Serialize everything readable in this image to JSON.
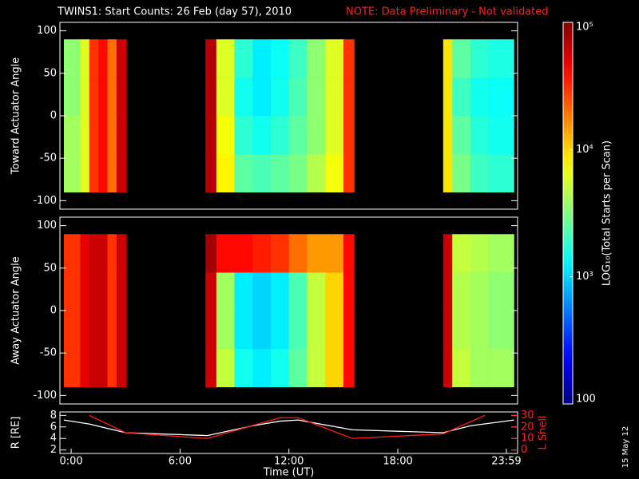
{
  "title": "TWINS1: Start Counts: 26 Feb (day  57), 2010",
  "note": "NOTE: Data Preliminary - Not validated",
  "date_stamp": "15 May 12",
  "colorbar": {
    "label": "LOG₁₀(Total Starts per Scan)",
    "log": true,
    "lim": [
      100,
      100000
    ],
    "ticks": [
      100,
      {
        "value": 1000,
        "label": "10³"
      },
      {
        "value": 10000,
        "label": "10⁴"
      },
      {
        "value": 100000,
        "label": "10⁵"
      }
    ]
  },
  "chart_data": [
    {
      "type": "heatmap",
      "ylabel": "Toward Actuator Angle",
      "xlim": [
        -0.62,
        24.6
      ],
      "ylim": [
        -110,
        110
      ],
      "yticks": [
        -100,
        -50,
        0,
        50,
        100
      ],
      "x_edges": [
        -0.4,
        0.5,
        1,
        1.5,
        2,
        2.5,
        3.05,
        7.4,
        8,
        9,
        10,
        11,
        12,
        13,
        14,
        15,
        15.6,
        20.5,
        21,
        22,
        23,
        24.4
      ],
      "y_edges": [
        -90,
        -45,
        0,
        45,
        90
      ],
      "z": [
        [
          4000,
          6000,
          30000,
          40000,
          20000,
          60000,
          null,
          70000,
          8000,
          2500,
          2200,
          2500,
          3000,
          4500,
          7000,
          30000,
          null,
          9000,
          3000,
          2000,
          1800
        ],
        [
          4000,
          6000,
          30000,
          40000,
          20000,
          60000,
          null,
          70000,
          7000,
          1800,
          1500,
          1800,
          2500,
          3500,
          6000,
          30000,
          null,
          9000,
          2500,
          1700,
          1500
        ],
        [
          3500,
          6000,
          30000,
          40000,
          20000,
          60000,
          null,
          70000,
          6000,
          1500,
          1200,
          1500,
          2200,
          3500,
          6000,
          30000,
          null,
          9000,
          2000,
          1500,
          1400
        ],
        [
          3500,
          6000,
          30000,
          40000,
          20000,
          60000,
          null,
          70000,
          6000,
          1800,
          1200,
          1400,
          2000,
          3500,
          6000,
          30000,
          null,
          9000,
          2500,
          1800,
          1600
        ]
      ]
    },
    {
      "type": "heatmap",
      "ylabel": "Away Actuator Angle",
      "xlim": [
        -0.62,
        24.6
      ],
      "ylim": [
        -110,
        110
      ],
      "yticks": [
        -100,
        -50,
        0,
        50,
        100
      ],
      "x_edges": [
        -0.4,
        0.5,
        1,
        1.5,
        2,
        2.5,
        3.05,
        7.4,
        8,
        9,
        10,
        11,
        12,
        13,
        14,
        15,
        15.6,
        20.5,
        21,
        22,
        23,
        24.4
      ],
      "y_edges": [
        -90,
        -45,
        0,
        45,
        90
      ],
      "z": [
        [
          30000,
          50000,
          60000,
          60000,
          30000,
          60000,
          null,
          60000,
          5000,
          1500,
          1200,
          1500,
          2500,
          5000,
          10000,
          40000,
          null,
          60000,
          5000,
          4000,
          4000
        ],
        [
          30000,
          50000,
          60000,
          60000,
          30000,
          60000,
          null,
          60000,
          4000,
          1200,
          1000,
          1200,
          2200,
          5000,
          10000,
          40000,
          null,
          60000,
          4500,
          4000,
          3500
        ],
        [
          30000,
          50000,
          60000,
          60000,
          30000,
          60000,
          null,
          60000,
          4000,
          1200,
          1000,
          1200,
          2200,
          5000,
          10000,
          40000,
          null,
          60000,
          4500,
          4000,
          3500
        ],
        [
          30000,
          50000,
          60000,
          60000,
          30000,
          60000,
          null,
          80000,
          40000,
          40000,
          35000,
          30000,
          20000,
          15000,
          15000,
          40000,
          null,
          60000,
          5000,
          4500,
          4000
        ]
      ]
    },
    {
      "type": "line",
      "xlabel": "Time (UT)",
      "ylabel": "R [RE]",
      "y2label": "L Shell",
      "xlim": [
        -0.62,
        24.6
      ],
      "xticks": [
        {
          "value": 0,
          "label": "0:00"
        },
        {
          "value": 6,
          "label": "6:00"
        },
        {
          "value": 12,
          "label": "12:00"
        },
        {
          "value": 18,
          "label": "18:00"
        },
        {
          "value": 23.983,
          "label": "23:59"
        }
      ],
      "ylim": [
        1.4,
        8.6
      ],
      "yticks": [
        2,
        4,
        6,
        8
      ],
      "y2lim": [
        -3,
        33
      ],
      "y2ticks": [
        0,
        10,
        20,
        30
      ],
      "series": [
        {
          "color": "#ffffff",
          "x": [
            -0.4,
            1,
            3,
            7.5,
            10,
            11.5,
            12.5,
            15.5,
            20.5,
            22,
            24.4
          ],
          "values": [
            7.2,
            6.5,
            5,
            4.5,
            6.2,
            7,
            7.2,
            5.5,
            5,
            6.2,
            7.2
          ]
        },
        {
          "color": "#ff2020",
          "axis": "y2",
          "x": [
            1,
            3,
            7.5,
            11.5,
            12.5,
            15.5,
            20.5,
            22.8
          ],
          "values": [
            30,
            15,
            10,
            28,
            28,
            10,
            14,
            30
          ]
        }
      ]
    }
  ]
}
